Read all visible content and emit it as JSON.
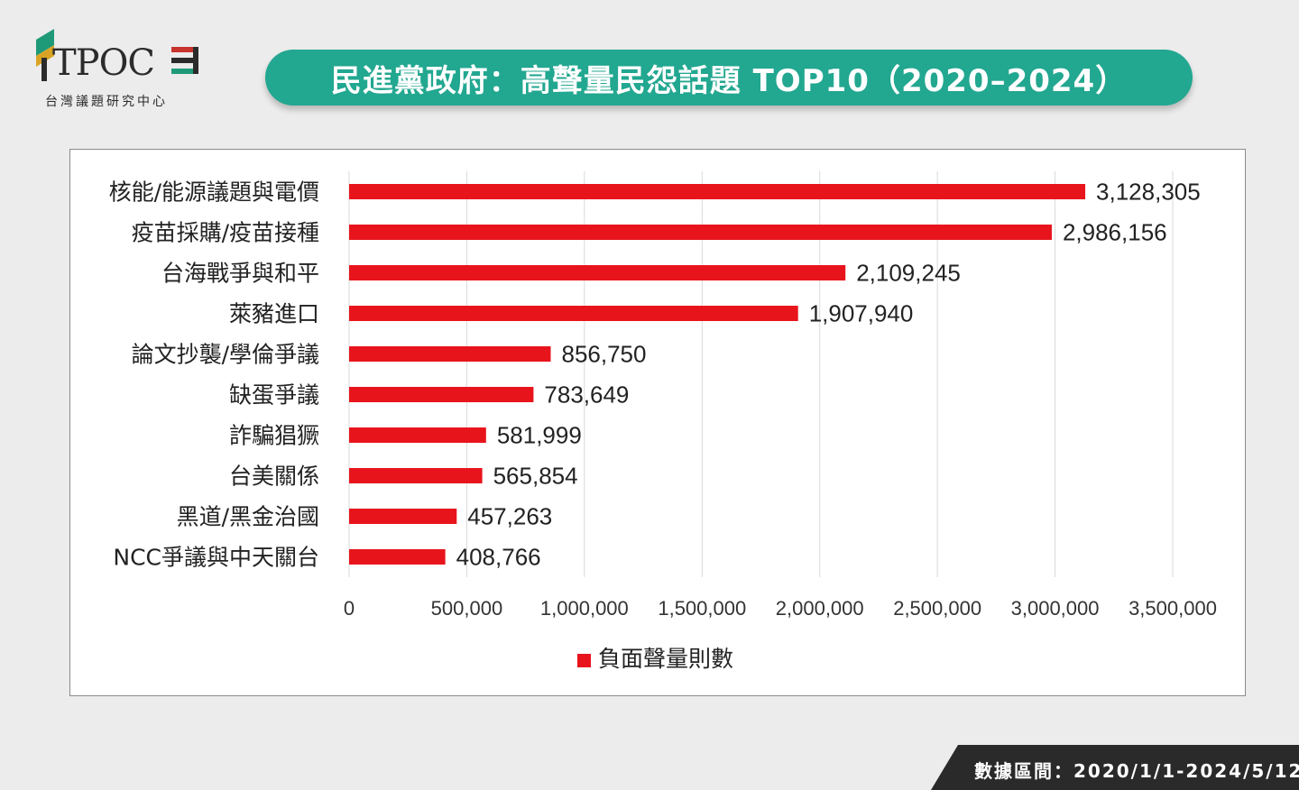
{
  "header": {
    "logo_text": "TPOC",
    "logo_subtitle": "台灣議題研究中心",
    "title": "民進黨政府：高聲量民怨話題 TOP10（2020–2024）"
  },
  "footer": {
    "data_range": "數據區間：2020/1/1-2024/5/12"
  },
  "colors": {
    "bar": "#e8141c",
    "banner": "#22a790",
    "logo_green": "#1f9a78",
    "logo_red": "#c8332e",
    "logo_yellow": "#d9a425"
  },
  "chart_data": {
    "type": "bar",
    "orientation": "horizontal",
    "categories": [
      "核能/能源議題與電價",
      "疫苗採購/疫苗接種",
      "台海戰爭與和平",
      "萊豬進口",
      "論文抄襲/學倫爭議",
      "缺蛋爭議",
      "詐騙猖獗",
      "台美關係",
      "黑道/黑金治國",
      "NCC爭議與中天關台"
    ],
    "series": [
      {
        "name": "負面聲量則數",
        "values": [
          3128305,
          2986156,
          2109245,
          1907940,
          856750,
          783649,
          581999,
          565854,
          457263,
          408766
        ],
        "value_labels": [
          "3,128,305",
          "2,986,156",
          "2,109,245",
          "1,907,940",
          "856,750",
          "783,649",
          "581,999",
          "565,854",
          "457,263",
          "408,766"
        ]
      }
    ],
    "x_ticks": [
      0,
      500000,
      1000000,
      1500000,
      2000000,
      2500000,
      3000000,
      3500000
    ],
    "x_tick_labels": [
      "0",
      "500,000",
      "1,000,000",
      "1,500,000",
      "2,000,000",
      "2,500,000",
      "3,000,000",
      "3,500,000"
    ],
    "xlim": [
      0,
      3500000
    ],
    "grid": true,
    "legend_position": "bottom"
  }
}
